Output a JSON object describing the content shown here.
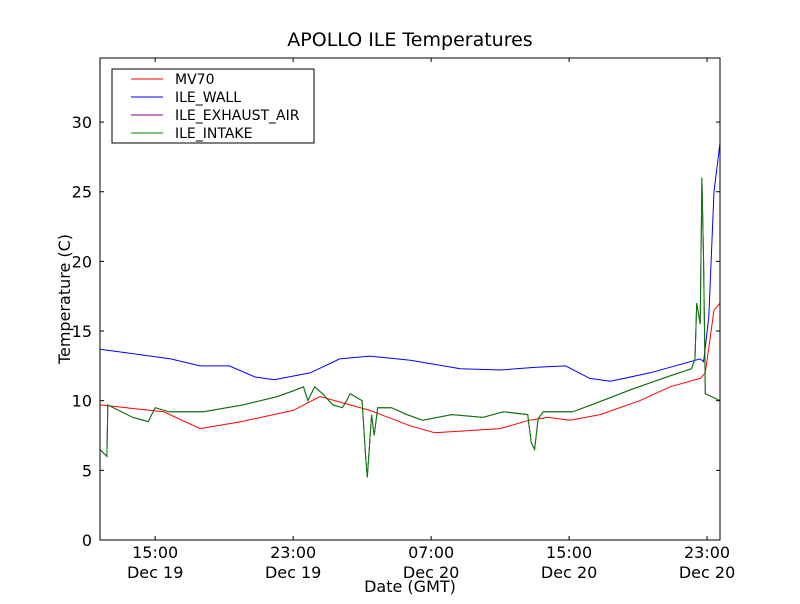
{
  "chart_data": {
    "type": "line",
    "title": "APOLLO ILE Temperatures",
    "xlabel": "Date (GMT)",
    "ylabel": "Temperature (C)",
    "x_units": "hours since Dec 19 00:00 GMT",
    "xlim": [
      11.8,
      47.75
    ],
    "ylim": [
      0,
      34.6
    ],
    "grid": false,
    "legend_placement": "top-left",
    "xticks": [
      {
        "value": 15,
        "time": "15:00",
        "date": "Dec 19"
      },
      {
        "value": 23,
        "time": "23:00",
        "date": "Dec 19"
      },
      {
        "value": 31,
        "time": "07:00",
        "date": "Dec 20"
      },
      {
        "value": 39,
        "time": "15:00",
        "date": "Dec 20"
      },
      {
        "value": 47,
        "time": "23:00",
        "date": "Dec 20"
      }
    ],
    "yticks": [
      0,
      5,
      10,
      15,
      20,
      25,
      30
    ],
    "series": [
      {
        "name": "MV70",
        "color": "#ff0000",
        "x": [
          11.8,
          15.5,
          17.6,
          20,
          23,
          24.55,
          27.45,
          29.8,
          31.2,
          35,
          36.7,
          37.8,
          39.05,
          40.8,
          43.1,
          44.85,
          46.6,
          46.9,
          47.4,
          47.75
        ],
        "y": [
          9.7,
          9.2,
          8.0,
          8.5,
          9.3,
          10.3,
          9.3,
          8.2,
          7.7,
          8.0,
          8.6,
          8.8,
          8.6,
          9.0,
          10.0,
          11.0,
          11.6,
          12.0,
          16.5,
          17.0
        ]
      },
      {
        "name": "ILE_WALL",
        "color": "#0000ff",
        "x": [
          11.8,
          15.9,
          17.6,
          19.3,
          20.8,
          21.9,
          24,
          25.7,
          27.45,
          29.8,
          32.7,
          35,
          37.1,
          38.8,
          40.2,
          41.4,
          43.7,
          46.6,
          46.8,
          47.1,
          47.4,
          47.75
        ],
        "y": [
          13.7,
          13.0,
          12.5,
          12.5,
          11.7,
          11.5,
          12.0,
          13.0,
          13.2,
          12.9,
          12.3,
          12.2,
          12.4,
          12.5,
          11.6,
          11.4,
          12.0,
          13.0,
          12.8,
          16.0,
          25.0,
          28.5
        ]
      },
      {
        "name": "ILE_EXHAUST_AIR",
        "color": "#800080",
        "x": [
          11.8,
          12.2,
          12.25,
          13.7,
          14.6,
          14.8,
          15,
          15.8,
          17.8,
          20.1,
          22.1,
          23,
          23.6,
          23.85,
          24.25,
          24.7,
          25.3,
          25.85,
          26.1,
          26.3,
          27,
          27.2,
          27.3,
          27.55,
          27.7,
          27.9,
          28.7,
          29.6,
          30.5,
          32.2,
          34,
          35.2,
          36.6,
          36.8,
          37,
          37.2,
          37.5,
          39.2,
          40.3,
          42.6,
          44.9,
          46.1,
          46.3,
          46.4,
          46.6,
          46.7,
          46.8,
          46.9,
          47.75
        ],
        "y": [
          6.5,
          6.0,
          9.7,
          8.8,
          8.5,
          9.0,
          9.5,
          9.2,
          9.2,
          9.7,
          10.3,
          10.7,
          11.0,
          10.0,
          11.0,
          10.5,
          9.7,
          9.5,
          10.0,
          10.5,
          10.0,
          6.0,
          4.5,
          9.0,
          7.5,
          9.5,
          9.5,
          9.0,
          8.6,
          9.0,
          8.8,
          9.2,
          9.0,
          7.0,
          6.5,
          8.7,
          9.2,
          9.2,
          9.7,
          10.8,
          11.8,
          12.3,
          13.0,
          17.0,
          15.5,
          26.0,
          20.0,
          10.5,
          10.0
        ]
      },
      {
        "name": "ILE_INTAKE",
        "color": "#008000",
        "x": [
          11.8,
          12.2,
          12.25,
          13.7,
          14.6,
          14.8,
          15,
          15.8,
          17.8,
          20.1,
          22.1,
          23,
          23.6,
          23.85,
          24.25,
          24.7,
          25.3,
          25.85,
          26.1,
          26.3,
          27,
          27.2,
          27.3,
          27.55,
          27.7,
          27.9,
          28.7,
          29.6,
          30.5,
          32.2,
          34,
          35.2,
          36.6,
          36.8,
          37,
          37.2,
          37.5,
          39.2,
          40.3,
          42.6,
          44.9,
          46.1,
          46.3,
          46.4,
          46.6,
          46.7,
          46.8,
          46.9,
          47.75
        ],
        "y": [
          6.5,
          6.0,
          9.7,
          8.8,
          8.5,
          9.0,
          9.5,
          9.2,
          9.2,
          9.7,
          10.3,
          10.7,
          11.0,
          10.0,
          11.0,
          10.5,
          9.7,
          9.5,
          10.0,
          10.5,
          10.0,
          6.0,
          4.5,
          9.0,
          7.5,
          9.5,
          9.5,
          9.0,
          8.6,
          9.0,
          8.8,
          9.2,
          9.0,
          7.0,
          6.5,
          8.7,
          9.2,
          9.2,
          9.7,
          10.8,
          11.8,
          12.3,
          13.0,
          17.0,
          15.5,
          26.0,
          20.0,
          10.5,
          10.0
        ]
      }
    ]
  }
}
